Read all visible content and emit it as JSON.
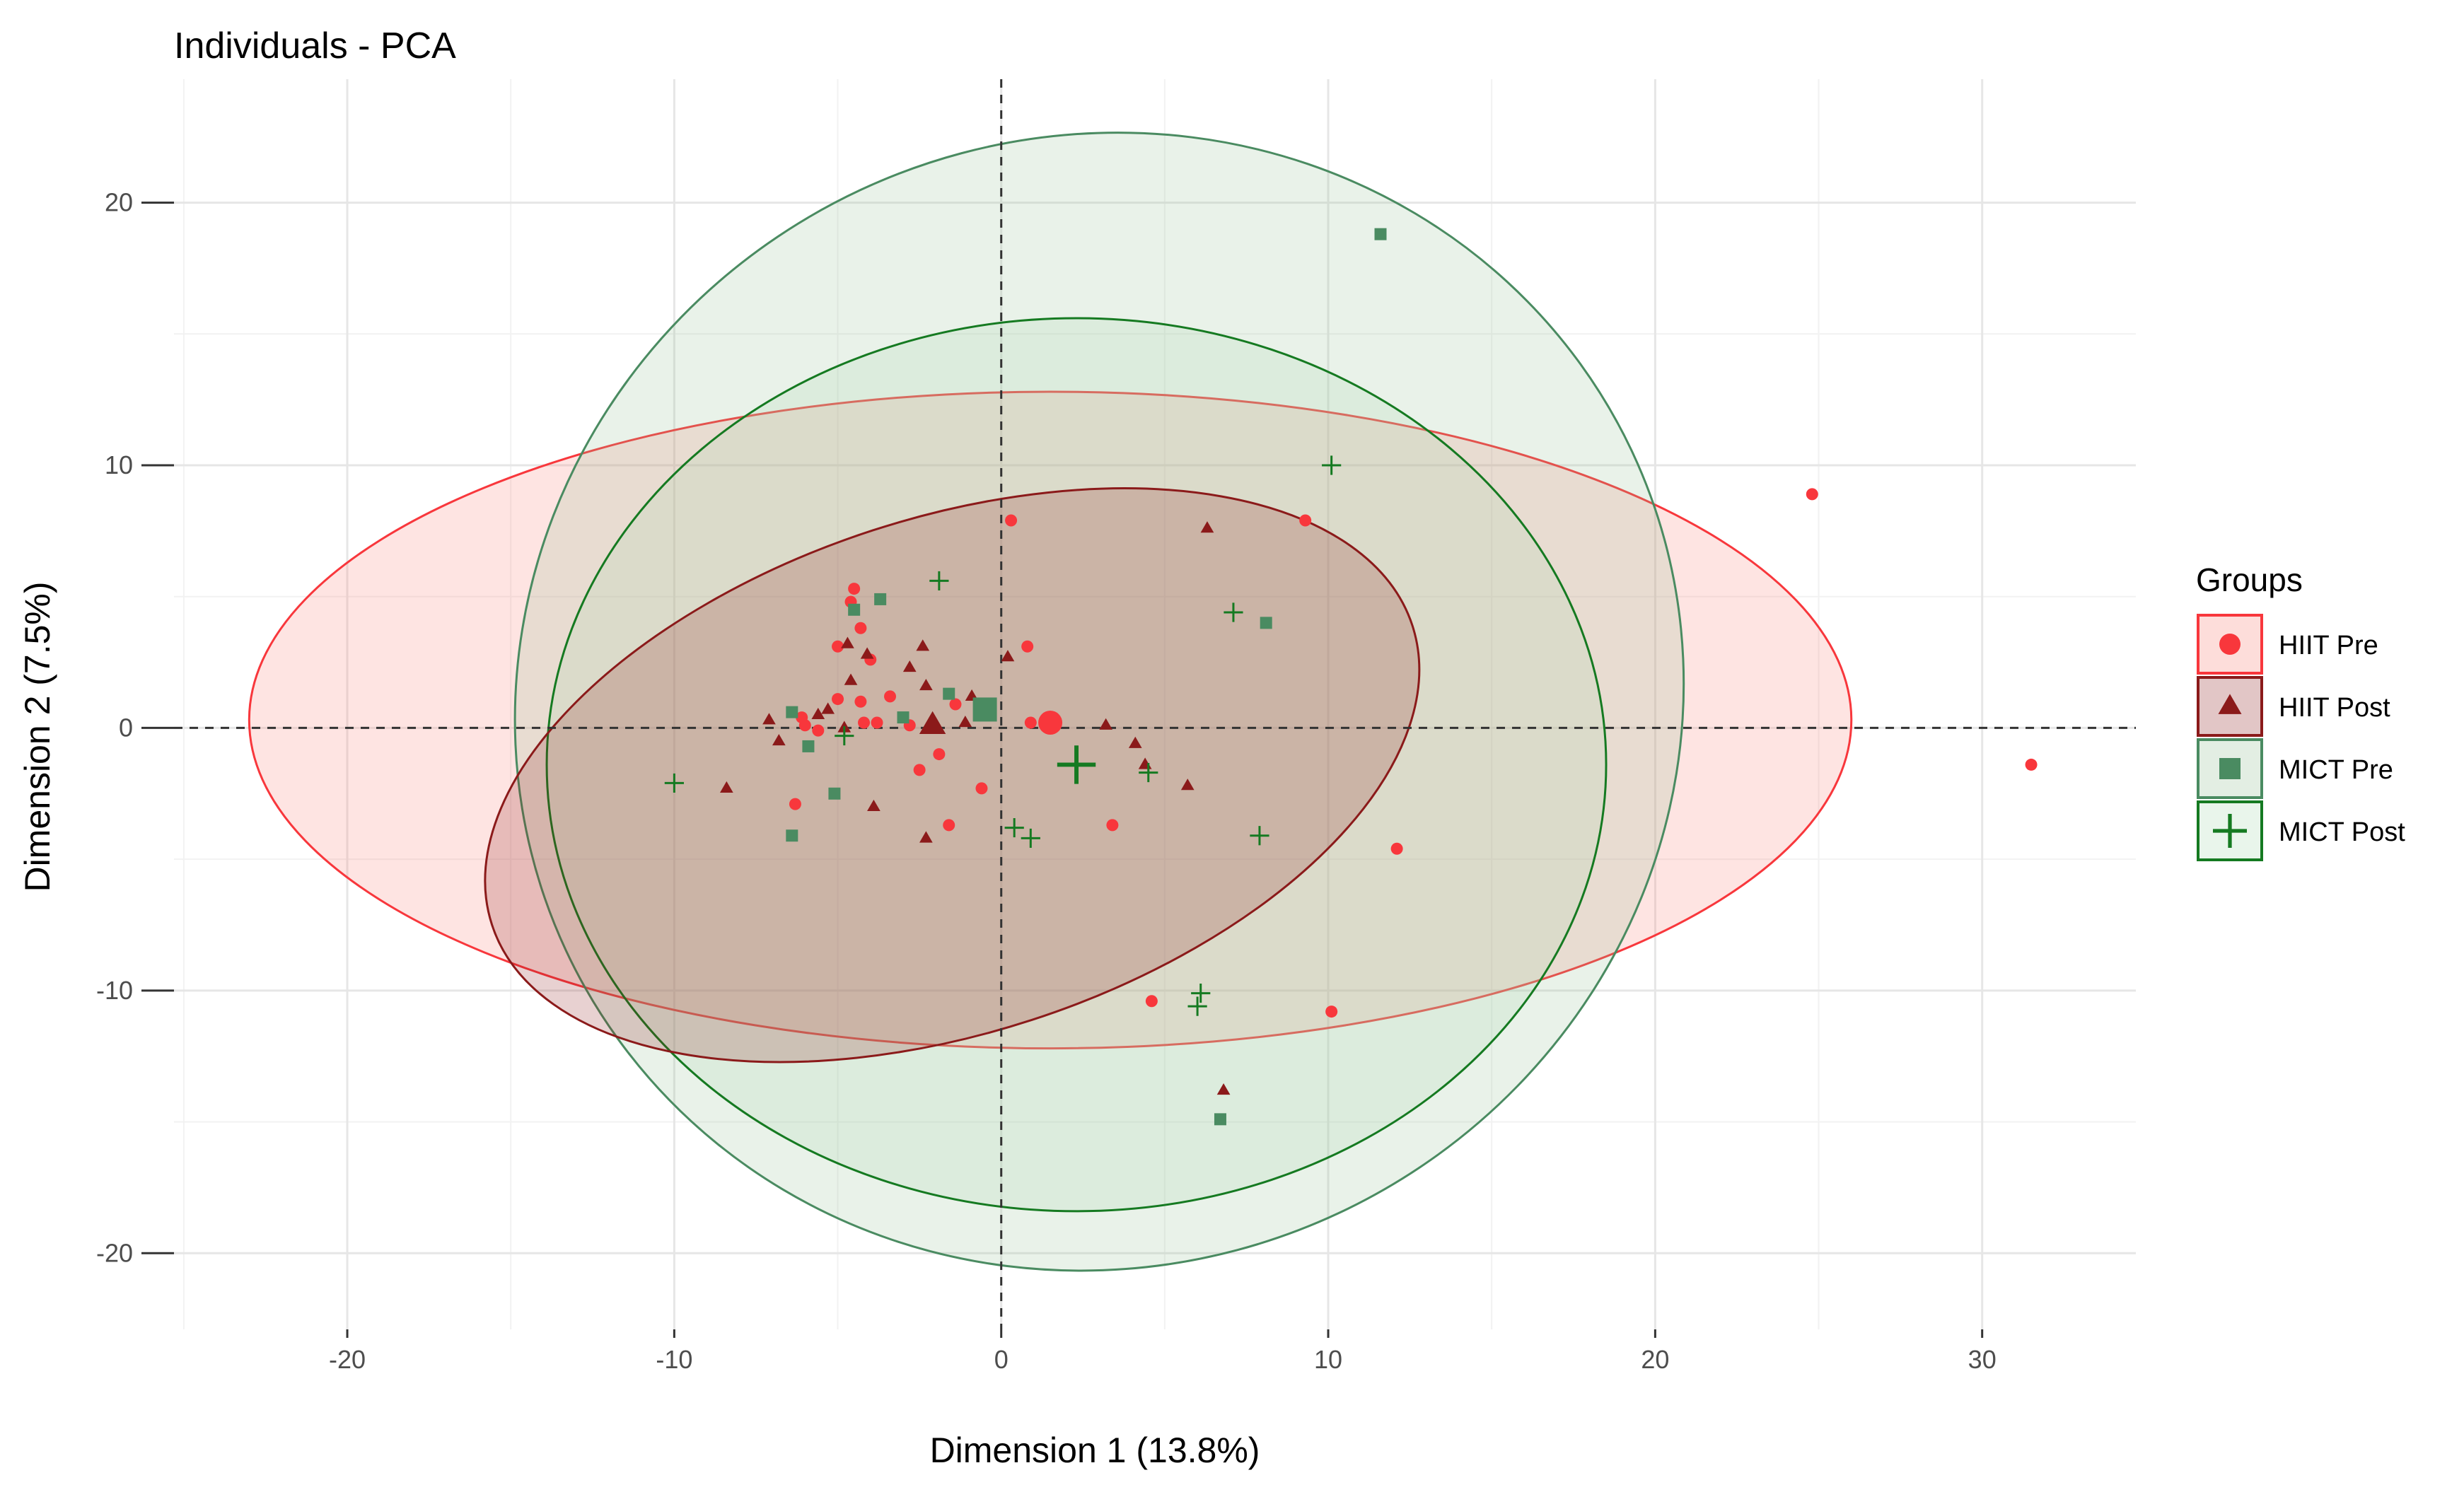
{
  "chart_data": {
    "type": "scatter",
    "title": "Individuals - PCA",
    "xlabel": "Dimension 1 (13.8%)",
    "ylabel": "Dimension 2 (7.5%)",
    "xlim": [
      -25.3,
      34.7
    ],
    "ylim": [
      -22.9,
      24.7
    ],
    "x_ticks": [
      -20,
      -10,
      0,
      10,
      20,
      30
    ],
    "x_tick_labels": [
      "-20",
      "-10",
      "0",
      "10",
      "20",
      "30"
    ],
    "y_ticks": [
      -20,
      -10,
      0,
      10,
      20
    ],
    "y_tick_labels": [
      "-20",
      "-10",
      "0",
      "10",
      "20"
    ],
    "grid": true,
    "reference_lines": {
      "x": 0,
      "y": 0,
      "style": "dashed"
    },
    "legend": {
      "title": "Groups",
      "position": "right"
    },
    "series": [
      {
        "name": "HIIT  Pre",
        "marker": "circle",
        "color": "#f8373c",
        "ellipse": {
          "cx": 1.5,
          "cy": 0.3,
          "rx": 24.5,
          "ry": 12.5,
          "angle": 0,
          "fill": "#f8766d",
          "stroke": "#f8373c"
        },
        "centroid": [
          1.5,
          0.2
        ],
        "points": [
          [
            -4.5,
            5.3
          ],
          [
            -4.6,
            4.8
          ],
          [
            -4.3,
            3.8
          ],
          [
            -4.0,
            2.6
          ],
          [
            -5.0,
            3.1
          ],
          [
            -3.4,
            1.2
          ],
          [
            -4.3,
            1.0
          ],
          [
            -5.0,
            1.1
          ],
          [
            -3.8,
            0.2
          ],
          [
            -2.8,
            0.1
          ],
          [
            -6.0,
            0.1
          ],
          [
            -6.1,
            0.4
          ],
          [
            -5.6,
            -0.1
          ],
          [
            -4.2,
            0.2
          ],
          [
            -2.5,
            -1.6
          ],
          [
            -1.9,
            -1.0
          ],
          [
            -1.4,
            0.9
          ],
          [
            -0.4,
            0.5
          ],
          [
            -0.6,
            -2.3
          ],
          [
            -1.6,
            -3.7
          ],
          [
            -6.3,
            -2.9
          ],
          [
            0.3,
            7.9
          ],
          [
            0.8,
            3.1
          ],
          [
            0.9,
            0.2
          ],
          [
            3.4,
            -3.7
          ],
          [
            9.3,
            7.9
          ],
          [
            12.1,
            -4.6
          ],
          [
            4.6,
            -10.4
          ],
          [
            10.1,
            -10.8
          ],
          [
            24.8,
            8.9
          ],
          [
            31.5,
            -1.4
          ]
        ]
      },
      {
        "name": "HIIT Post",
        "marker": "triangle",
        "color": "#8b1a1a",
        "ellipse": {
          "cx": -1.5,
          "cy": -1.8,
          "rx": 14.8,
          "ry": 9.8,
          "angle": -18,
          "fill": "#8b1a1a",
          "stroke": "#8b1a1a"
        },
        "centroid": [
          -2.1,
          0.1
        ],
        "points": [
          [
            -4.7,
            3.2
          ],
          [
            -4.1,
            2.8
          ],
          [
            -2.4,
            3.1
          ],
          [
            -2.3,
            1.6
          ],
          [
            -2.8,
            2.3
          ],
          [
            -4.6,
            1.8
          ],
          [
            -5.3,
            0.7
          ],
          [
            -5.6,
            0.5
          ],
          [
            -6.8,
            -0.5
          ],
          [
            -7.1,
            0.3
          ],
          [
            -8.4,
            -2.3
          ],
          [
            -4.8,
            0.0
          ],
          [
            -3.9,
            -3.0
          ],
          [
            -2.3,
            -4.2
          ],
          [
            -1.1,
            0.2
          ],
          [
            -0.9,
            1.2
          ],
          [
            0.2,
            2.7
          ],
          [
            3.2,
            0.1
          ],
          [
            4.1,
            -0.6
          ],
          [
            4.4,
            -1.4
          ],
          [
            5.7,
            -2.2
          ],
          [
            6.3,
            7.6
          ],
          [
            6.8,
            -13.8
          ]
        ]
      },
      {
        "name": "MICT  Pre",
        "marker": "square",
        "color": "#4a8b61",
        "ellipse": {
          "cx": 3.0,
          "cy": 1.0,
          "rx": 18.0,
          "ry": 21.5,
          "angle": -25,
          "fill": "#8fbc8f",
          "stroke": "#4a8b61"
        },
        "centroid": [
          -0.5,
          0.7
        ],
        "points": [
          [
            -3.7,
            4.9
          ],
          [
            -4.5,
            4.5
          ],
          [
            -6.4,
            0.6
          ],
          [
            -5.9,
            -0.7
          ],
          [
            -5.1,
            -2.5
          ],
          [
            -6.4,
            -4.1
          ],
          [
            -3.0,
            0.4
          ],
          [
            -1.6,
            1.3
          ],
          [
            8.1,
            4.0
          ],
          [
            11.6,
            18.8
          ],
          [
            6.7,
            -14.9
          ]
        ]
      },
      {
        "name": "MICT Post",
        "marker": "plus",
        "color": "#157a21",
        "ellipse": {
          "cx": 2.3,
          "cy": -1.4,
          "rx": 16.2,
          "ry": 17.0,
          "angle": 0,
          "fill": "#a8d8b0",
          "stroke": "#157a21"
        },
        "centroid": [
          2.3,
          -1.4
        ],
        "points": [
          [
            -1.9,
            5.6
          ],
          [
            -10.0,
            -2.1
          ],
          [
            -4.8,
            -0.3
          ],
          [
            0.4,
            -3.8
          ],
          [
            0.9,
            -4.2
          ],
          [
            4.5,
            -1.7
          ],
          [
            7.9,
            -4.1
          ],
          [
            7.1,
            4.4
          ],
          [
            10.1,
            10.0
          ],
          [
            6.1,
            -10.1
          ],
          [
            6.0,
            -10.6
          ]
        ]
      }
    ]
  }
}
